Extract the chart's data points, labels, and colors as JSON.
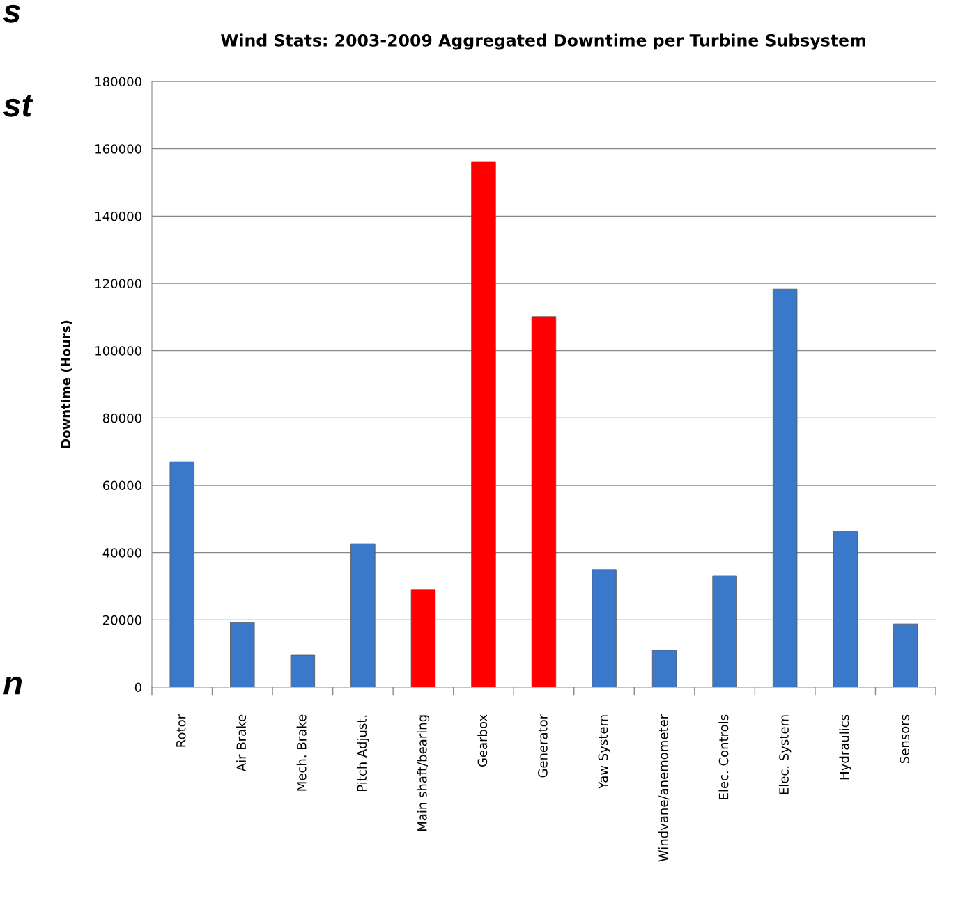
{
  "chart_data": {
    "type": "bar",
    "title": "Wind Stats: 2003-2009 Aggregated Downtime per Turbine Subsystem",
    "ylabel": "Downtime (Hours)",
    "categories": [
      "Rotor",
      "Air Brake",
      "Mech. Brake",
      "Pitch Adjust.",
      "Main shaft/bearing",
      "Gearbox",
      "Generator",
      "Yaw System",
      "Windvane/anemometer",
      "Elec. Controls",
      "Elec. System",
      "Hydraulics",
      "Sensors"
    ],
    "values": [
      67000,
      19200,
      9500,
      42600,
      29000,
      156200,
      110100,
      35000,
      11000,
      33100,
      118300,
      46300,
      18800
    ],
    "colors": [
      "#3a78c9",
      "#3a78c9",
      "#3a78c9",
      "#3a78c9",
      "#ff0000",
      "#ff0000",
      "#ff0000",
      "#3a78c9",
      "#3a78c9",
      "#3a78c9",
      "#3a78c9",
      "#3a78c9",
      "#3a78c9"
    ],
    "ylim": [
      0,
      180000
    ],
    "yticks": [
      0,
      20000,
      40000,
      60000,
      80000,
      100000,
      120000,
      140000,
      160000,
      180000
    ],
    "grid": "y",
    "legend": false,
    "annotations": [
      "s",
      "st",
      "n"
    ]
  }
}
